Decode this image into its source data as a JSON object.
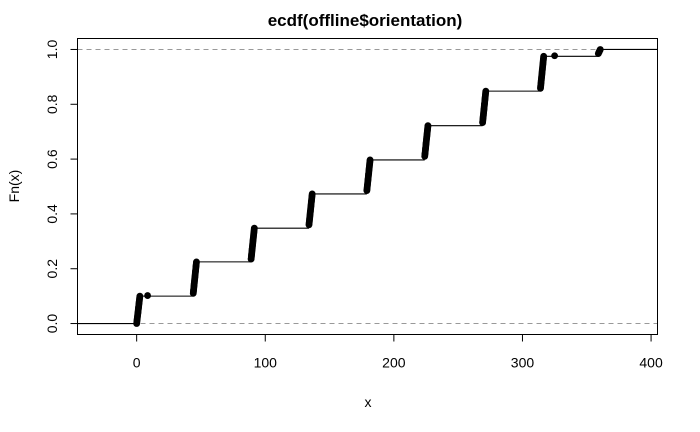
{
  "chart_data": {
    "type": "line",
    "title": "ecdf(offline$orientation)",
    "xlabel": "x",
    "ylabel": "Fn(x)",
    "xlim": [
      -46,
      405
    ],
    "ylim": [
      -0.04,
      1.04
    ],
    "x_ticks": [
      0,
      100,
      200,
      300,
      400
    ],
    "x_tick_labels": [
      "0",
      "100",
      "200",
      "300",
      "400"
    ],
    "y_ticks": [
      0.0,
      0.2,
      0.4,
      0.6,
      0.8,
      1.0
    ],
    "y_tick_labels": [
      "0.0",
      "0.2",
      "0.4",
      "0.6",
      "0.8",
      "1.0"
    ],
    "reference_lines": [
      0,
      1
    ],
    "grid": false,
    "clusters": [
      {
        "x_start": 0.0,
        "x_end": 2.5,
        "y_start": 0.0,
        "y_end": 0.1
      },
      {
        "x_start": 44.0,
        "x_end": 46.5,
        "y_start": 0.11,
        "y_end": 0.225
      },
      {
        "x_start": 89.0,
        "x_end": 91.5,
        "y_start": 0.235,
        "y_end": 0.348
      },
      {
        "x_start": 134.0,
        "x_end": 136.5,
        "y_start": 0.36,
        "y_end": 0.473
      },
      {
        "x_start": 179.0,
        "x_end": 181.5,
        "y_start": 0.485,
        "y_end": 0.597
      },
      {
        "x_start": 224.0,
        "x_end": 226.5,
        "y_start": 0.61,
        "y_end": 0.722
      },
      {
        "x_start": 269.0,
        "x_end": 271.5,
        "y_start": 0.733,
        "y_end": 0.848
      },
      {
        "x_start": 314.0,
        "x_end": 316.5,
        "y_start": 0.858,
        "y_end": 0.975
      },
      {
        "x_start": 359.0,
        "x_end": 360.5,
        "y_start": 0.985,
        "y_end": 1.0
      }
    ],
    "isolated_points": [
      {
        "x": 8.5,
        "y": 0.102
      },
      {
        "x": 325.0,
        "y": 0.977
      }
    ]
  }
}
